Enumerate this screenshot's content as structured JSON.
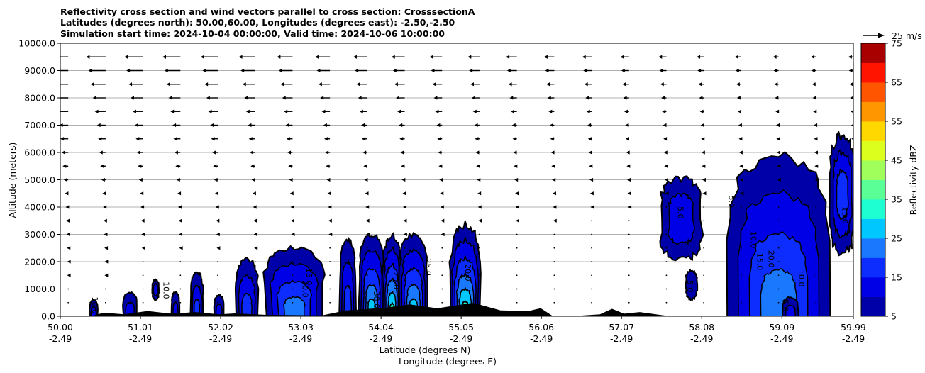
{
  "chart_data": {
    "type": "contour",
    "title_lines": [
      "Reflectivity cross section and wind vectors parallel to cross section: CrosssectionA",
      "Latitudes (degrees north): 50.00,60.00, Longitudes (degrees east): -2.50,-2.50",
      "Simulation start time: 2024-10-04 00:00:00, Valid time: 2024-10-06 10:00:00"
    ],
    "ylabel": "Altitude (meters)",
    "xlabel": "Latitude (degrees N)",
    "xlabel2": "Longitude (degrees E)",
    "ylim": [
      0,
      10000
    ],
    "xlim": [
      50.0,
      59.99
    ],
    "y_ticks": [
      "0.0",
      "1000.0",
      "2000.0",
      "3000.0",
      "4000.0",
      "5000.0",
      "6000.0",
      "7000.0",
      "8000.0",
      "9000.0",
      "10000.0"
    ],
    "x_ticks": [
      {
        "lat": "50.00",
        "lon": "-2.49"
      },
      {
        "lat": "51.01",
        "lon": "-2.49"
      },
      {
        "lat": "52.02",
        "lon": "-2.49"
      },
      {
        "lat": "53.03",
        "lon": "-2.49"
      },
      {
        "lat": "54.04",
        "lon": "-2.49"
      },
      {
        "lat": "55.05",
        "lon": "-2.49"
      },
      {
        "lat": "56.06",
        "lon": "-2.49"
      },
      {
        "lat": "57.07",
        "lon": "-2.49"
      },
      {
        "lat": "58.08",
        "lon": "-2.49"
      },
      {
        "lat": "59.09",
        "lon": "-2.49"
      },
      {
        "lat": "59.99",
        "lon": "-2.49"
      }
    ],
    "grid": "horizontal",
    "colorbar": {
      "label": "Reflectivity dBZ",
      "levels": [
        5,
        10,
        15,
        20,
        25,
        30,
        35,
        40,
        45,
        50,
        55,
        60,
        65,
        70,
        75
      ],
      "tick_labels": [
        "5",
        "15",
        "25",
        "35",
        "45",
        "55",
        "65",
        "75"
      ],
      "colors": [
        "#0000a8",
        "#0000e6",
        "#0d2dff",
        "#1a78ff",
        "#00c8ff",
        "#1effd2",
        "#5aff96",
        "#a0ff5a",
        "#dcff1e",
        "#ffd800",
        "#ff9600",
        "#ff5500",
        "#ff1400",
        "#a80000"
      ]
    },
    "quiver_key": "25 m/s",
    "cells": [
      {
        "lat": 50.42,
        "bottom": 0,
        "top": 700,
        "half_width": 0.05,
        "max": 12
      },
      {
        "lat": 50.88,
        "bottom": 0,
        "top": 1000,
        "half_width": 0.09,
        "max": 14
      },
      {
        "lat": 51.2,
        "bottom": 600,
        "top": 1350,
        "half_width": 0.04,
        "max": 10
      },
      {
        "lat": 51.45,
        "bottom": 0,
        "top": 1000,
        "half_width": 0.05,
        "max": 10
      },
      {
        "lat": 51.72,
        "bottom": 0,
        "top": 1800,
        "half_width": 0.08,
        "max": 16
      },
      {
        "lat": 52.0,
        "bottom": 0,
        "top": 900,
        "half_width": 0.06,
        "max": 10
      },
      {
        "lat": 52.35,
        "bottom": 0,
        "top": 2300,
        "half_width": 0.14,
        "max": 18
      },
      {
        "lat": 52.95,
        "bottom": 0,
        "top": 2800,
        "half_width": 0.38,
        "max": 24
      },
      {
        "lat": 53.62,
        "bottom": 0,
        "top": 3100,
        "half_width": 0.1,
        "max": 18
      },
      {
        "lat": 53.92,
        "bottom": 0,
        "top": 3250,
        "half_width": 0.16,
        "max": 26
      },
      {
        "lat": 54.18,
        "bottom": 0,
        "top": 3250,
        "half_width": 0.12,
        "max": 30
      },
      {
        "lat": 54.45,
        "bottom": 0,
        "top": 3300,
        "half_width": 0.18,
        "max": 28
      },
      {
        "lat": 55.1,
        "bottom": 0,
        "top": 3700,
        "half_width": 0.19,
        "max": 31
      },
      {
        "lat": 57.82,
        "bottom": 2000,
        "top": 5100,
        "half_width": 0.26,
        "max": 11
      },
      {
        "lat": 57.95,
        "bottom": 600,
        "top": 1700,
        "half_width": 0.07,
        "max": 9
      },
      {
        "lat": 59.05,
        "bottom": 0,
        "top": 6400,
        "half_width": 0.62,
        "max": 21
      },
      {
        "lat": 59.2,
        "bottom": 0,
        "top": 800,
        "half_width": 0.1,
        "max": 12
      },
      {
        "lat": 59.85,
        "bottom": 2200,
        "top": 6700,
        "half_width": 0.16,
        "max": 16
      }
    ],
    "contour_labels": [
      {
        "text": "10.0",
        "lat": 50.4,
        "alt": 400
      },
      {
        "text": "10.0",
        "lat": 51.3,
        "alt": 950
      },
      {
        "text": "15.0",
        "lat": 53.1,
        "alt": 1450
      },
      {
        "text": "20.0",
        "lat": 53.05,
        "alt": 1000
      },
      {
        "text": "25.0",
        "lat": 54.2,
        "alt": 1300
      },
      {
        "text": "30.0",
        "lat": 53.95,
        "alt": 600
      },
      {
        "text": "25.0",
        "lat": 54.6,
        "alt": 1800
      },
      {
        "text": "20.0",
        "lat": 55.1,
        "alt": 1600
      },
      {
        "text": "5.0",
        "lat": 57.78,
        "alt": 3800
      },
      {
        "text": "5.0",
        "lat": 57.9,
        "alt": 1100
      },
      {
        "text": "5.0",
        "lat": 58.42,
        "alt": 4200
      },
      {
        "text": "10.0",
        "lat": 58.7,
        "alt": 2800
      },
      {
        "text": "15.0",
        "lat": 58.78,
        "alt": 2000
      },
      {
        "text": "20.0",
        "lat": 58.92,
        "alt": 2100
      },
      {
        "text": "10.0",
        "lat": 59.3,
        "alt": 1400
      },
      {
        "text": "5.0",
        "lat": 59.1,
        "alt": 400
      },
      {
        "text": "15.0",
        "lat": 59.85,
        "alt": 3700
      }
    ],
    "terrain": [
      {
        "lat": 50.4,
        "h": 0
      },
      {
        "lat": 50.55,
        "h": 120
      },
      {
        "lat": 50.8,
        "h": 60
      },
      {
        "lat": 51.1,
        "h": 180
      },
      {
        "lat": 51.4,
        "h": 80
      },
      {
        "lat": 51.7,
        "h": 140
      },
      {
        "lat": 52.0,
        "h": 60
      },
      {
        "lat": 52.2,
        "h": 90
      },
      {
        "lat": 52.6,
        "h": 40
      },
      {
        "lat": 53.3,
        "h": 20
      },
      {
        "lat": 53.6,
        "h": 200
      },
      {
        "lat": 54.1,
        "h": 300
      },
      {
        "lat": 54.4,
        "h": 420
      },
      {
        "lat": 54.75,
        "h": 280
      },
      {
        "lat": 55.2,
        "h": 480
      },
      {
        "lat": 55.55,
        "h": 200
      },
      {
        "lat": 55.9,
        "h": 180
      },
      {
        "lat": 56.05,
        "h": 280
      },
      {
        "lat": 56.2,
        "h": 0
      },
      {
        "lat": 56.5,
        "h": 0
      },
      {
        "lat": 56.8,
        "h": 60
      },
      {
        "lat": 56.95,
        "h": 260
      },
      {
        "lat": 57.1,
        "h": 80
      },
      {
        "lat": 57.3,
        "h": 140
      },
      {
        "lat": 57.55,
        "h": 40
      },
      {
        "lat": 57.65,
        "h": 0
      }
    ],
    "wind_profile": [
      {
        "alt": 9500,
        "u": -9
      },
      {
        "alt": 9000,
        "u": -8
      },
      {
        "alt": 8500,
        "u": -7
      },
      {
        "alt": 8000,
        "u": -6
      },
      {
        "alt": 7500,
        "u": -5
      },
      {
        "alt": 7000,
        "u": -4
      },
      {
        "alt": 6500,
        "u": -3.5
      },
      {
        "alt": 6000,
        "u": -3
      },
      {
        "alt": 5500,
        "u": -2.5
      },
      {
        "alt": 5000,
        "u": -2
      },
      {
        "alt": 4500,
        "u": -1.5
      },
      {
        "alt": 4000,
        "u": -1.2
      },
      {
        "alt": 3500,
        "u": -1
      },
      {
        "alt": 3000,
        "u": -0.8
      },
      {
        "alt": 2500,
        "u": -0.6
      },
      {
        "alt": 2000,
        "u": -0.5
      },
      {
        "alt": 1500,
        "u": -0.5
      },
      {
        "alt": 1000,
        "u": -0.4
      },
      {
        "alt": 500,
        "u": -0.3
      }
    ]
  }
}
